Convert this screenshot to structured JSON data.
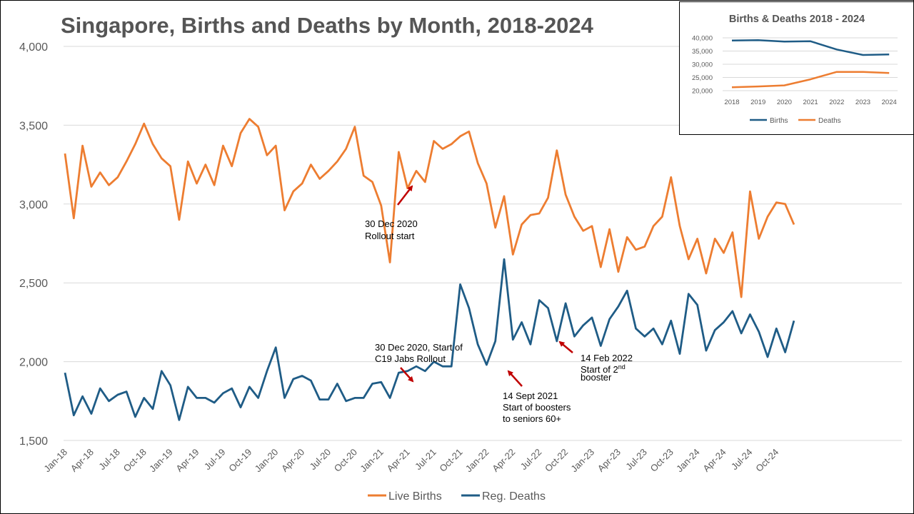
{
  "chart_data": [
    {
      "type": "line",
      "title": "Singapore, Births and Deaths by Month, 2018-2024",
      "xlabel": "",
      "ylabel": "",
      "ylim": [
        1500,
        4000
      ],
      "yticks": [
        "1,500",
        "2,000",
        "2,500",
        "3,000",
        "3,500",
        "4,000"
      ],
      "ytick_values": [
        1500,
        2000,
        2500,
        3000,
        3500,
        4000
      ],
      "grid": true,
      "legend": "bottom",
      "xtick_labels": [
        "Jan-18",
        "Apr-18",
        "Jul-18",
        "Oct-18",
        "Jan-19",
        "Apr-19",
        "Jul-19",
        "Oct-19",
        "Jan-20",
        "Apr-20",
        "Jul-20",
        "Oct-20",
        "Jan-21",
        "Apr-21",
        "Jul-21",
        "Oct-21",
        "Jan-22",
        "Apr-22",
        "Jul-22",
        "Oct-22",
        "Jan-23",
        "Apr-23",
        "Jul-23",
        "Oct-23",
        "Jan-24",
        "Apr-24",
        "Jul-24",
        "Oct-24"
      ],
      "series": [
        {
          "name": "Live Births",
          "color": "#ED7D31",
          "values": [
            3320,
            2910,
            3370,
            3110,
            3200,
            3120,
            3170,
            3270,
            3380,
            3510,
            3380,
            3290,
            3240,
            2900,
            3270,
            3130,
            3250,
            3120,
            3370,
            3240,
            3450,
            3540,
            3490,
            3310,
            3370,
            2960,
            3080,
            3130,
            3250,
            3160,
            3210,
            3270,
            3350,
            3490,
            3180,
            3140,
            2990,
            2630,
            3330,
            3100,
            3210,
            3140,
            3400,
            3350,
            3380,
            3430,
            3460,
            3260,
            3130,
            2850,
            3050,
            2680,
            2870,
            2930,
            2940,
            3040,
            3340,
            3060,
            2920,
            2830,
            2860,
            2600,
            2840,
            2570,
            2790,
            2710,
            2730,
            2860,
            2920,
            3170,
            2860,
            2650,
            2780,
            2560,
            2780,
            2690,
            2820,
            2410,
            3080,
            2780,
            2920,
            3010,
            3000,
            2870
          ]
        },
        {
          "name": "Reg. Deaths",
          "color": "#1F5C86",
          "values": [
            1930,
            1660,
            1780,
            1670,
            1830,
            1750,
            1790,
            1810,
            1650,
            1770,
            1700,
            1940,
            1850,
            1630,
            1840,
            1770,
            1770,
            1740,
            1800,
            1830,
            1710,
            1840,
            1770,
            1940,
            2090,
            1770,
            1890,
            1910,
            1880,
            1760,
            1760,
            1860,
            1750,
            1770,
            1770,
            1860,
            1870,
            1770,
            1930,
            1940,
            1970,
            1940,
            2000,
            1970,
            1970,
            2490,
            2340,
            2110,
            1980,
            2130,
            2650,
            2140,
            2250,
            2110,
            2390,
            2340,
            2130,
            2370,
            2160,
            2230,
            2280,
            2100,
            2270,
            2350,
            2450,
            2210,
            2160,
            2210,
            2110,
            2260,
            2050,
            2430,
            2360,
            2070,
            2200,
            2250,
            2320,
            2180,
            2300,
            2190,
            2030,
            2210,
            2060,
            2260
          ]
        }
      ],
      "annotations": [
        {
          "lines": [
            "30 Dec 2020",
            "Rollout start"
          ]
        },
        {
          "lines": [
            "30 Dec 2020, Start of",
            "C19 Jabs Rollout"
          ]
        },
        {
          "lines": [
            "14 Sept 2021",
            "Start of boosters",
            "to seniors 60+"
          ]
        },
        {
          "lines": [
            "14 Feb 2022",
            "Start of  2",
            "booster"
          ],
          "superscript": "nd"
        }
      ]
    },
    {
      "type": "line",
      "title": "Births & Deaths 2018 - 2024",
      "categories": [
        "2018",
        "2019",
        "2020",
        "2021",
        "2022",
        "2023",
        "2024"
      ],
      "ylim": [
        20000,
        40000
      ],
      "yticks": [
        "20,000",
        "25,000",
        "30,000",
        "35,000",
        "40,000"
      ],
      "ytick_values": [
        20000,
        25000,
        30000,
        35000,
        40000
      ],
      "grid": true,
      "legend": "bottom",
      "series": [
        {
          "name": "Births",
          "color": "#1F5C86",
          "values": [
            39000,
            39100,
            38600,
            38700,
            35600,
            33500,
            33700
          ]
        },
        {
          "name": "Deaths",
          "color": "#ED7D31",
          "values": [
            21300,
            21600,
            22000,
            24300,
            27100,
            27100,
            26700
          ]
        }
      ]
    }
  ],
  "annotation_arrow_color": "#C00000"
}
